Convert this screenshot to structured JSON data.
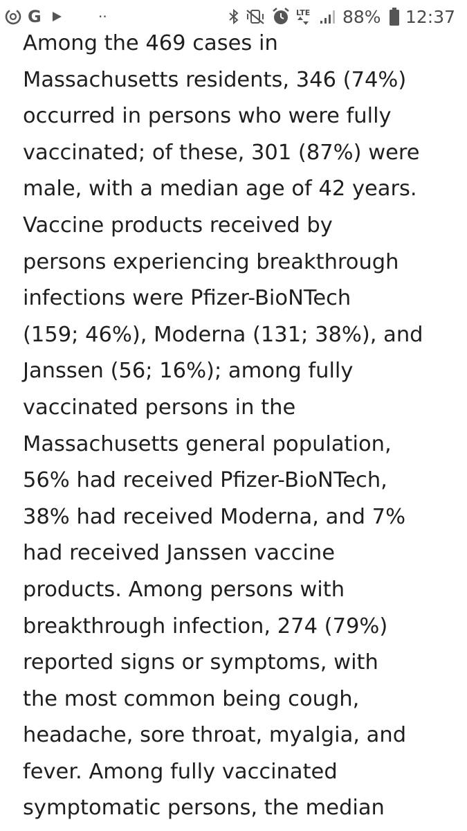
{
  "status_bar": {
    "icons": {
      "left": [
        "data-saver-icon",
        "google-icon",
        "play-icon",
        "more-notifications-icon"
      ],
      "right": [
        "bluetooth-icon",
        "vibrate-mute-icon",
        "alarm-icon",
        "lte-icon",
        "signal-icon",
        "battery-icon"
      ]
    },
    "g_letter": "G",
    "overflow_dots": "··",
    "lte_label": "LTE",
    "battery_percent": "88%",
    "time": "12:37"
  },
  "article": {
    "lines": [
      "Among the 469 cases in",
      "Massachusetts residents, 346 (74%)",
      "occurred in persons who were fully",
      "vaccinated; of these, 301 (87%) were",
      "male, with a median age of 42 years.",
      "Vaccine products received by",
      "persons experiencing breakthrough",
      "infections were Pfizer-BioNTech",
      "(159; 46%), Moderna (131; 38%), and",
      "Janssen (56; 16%); among fully",
      "vaccinated persons in the",
      "Massachusetts general population,",
      "56% had received Pfizer-BioNTech,",
      "38% had received Moderna, and 7%",
      "had received Janssen vaccine",
      "products. Among persons with",
      "breakthrough infection, 274 (79%)",
      "reported signs or symptoms, with",
      "the most common being cough,",
      "headache, sore throat, myalgia, and",
      "fever. Among fully vaccinated",
      "symptomatic persons, the median"
    ]
  }
}
